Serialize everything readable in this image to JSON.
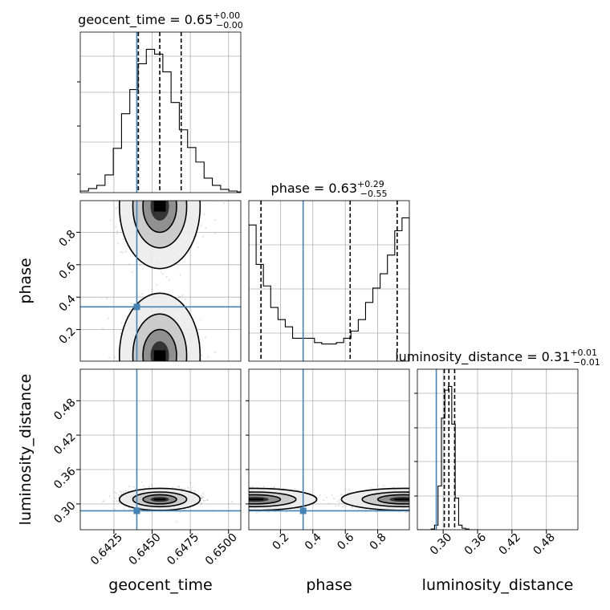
{
  "chart_data": {
    "type": "corner",
    "parameters": [
      "geocent_time",
      "phase",
      "luminosity_distance"
    ],
    "truths": [
      0.644,
      0.34,
      0.288
    ],
    "truth_color": "#4682b4",
    "axis_ranges": [
      [
        0.6403,
        0.6508
      ],
      [
        0.005,
        0.995
      ],
      [
        0.255,
        0.535
      ]
    ],
    "ticks": [
      {
        "values": [
          0.6425,
          0.645,
          0.6475,
          0.65
        ],
        "labels": [
          "0.6425",
          "0.6450",
          "0.6475",
          "0.6500"
        ]
      },
      {
        "values": [
          0.2,
          0.4,
          0.6,
          0.8
        ],
        "labels": [
          "0.2",
          "0.4",
          "0.6",
          "0.8"
        ]
      },
      {
        "values": [
          0.3,
          0.36,
          0.42,
          0.48
        ],
        "labels": [
          "0.30",
          "0.36",
          "0.42",
          "0.48"
        ]
      }
    ],
    "titles": [
      {
        "name": "geocent_time",
        "median": "0.65",
        "plus": "+0.00",
        "minus": "−0.00"
      },
      {
        "name": "phase",
        "median": "0.63",
        "plus": "+0.29",
        "minus": "−0.55"
      },
      {
        "name": "luminosity_distance",
        "median": "0.31",
        "plus": "+0.01",
        "minus": "−0.01"
      }
    ],
    "marginals": [
      {
        "quantiles": [
          0.6441,
          0.6455,
          0.6469
        ],
        "bin_edges": [
          0.6403,
          0.64084,
          0.64138,
          0.64192,
          0.64246,
          0.643,
          0.64354,
          0.64408,
          0.64462,
          0.64516,
          0.6457,
          0.64624,
          0.64678,
          0.64732,
          0.64786,
          0.6484,
          0.64894,
          0.64948,
          0.65002,
          0.65056,
          0.6511
        ],
        "counts": [
          2,
          5,
          9,
          22,
          55,
          98,
          128,
          160,
          178,
          172,
          150,
          112,
          78,
          56,
          38,
          18,
          9,
          4,
          2,
          1
        ]
      },
      {
        "quantiles": [
          0.08,
          0.63,
          0.92
        ],
        "bin_edges": [
          0.005,
          0.05,
          0.095,
          0.14,
          0.185,
          0.23,
          0.275,
          0.32,
          0.365,
          0.41,
          0.455,
          0.5,
          0.545,
          0.59,
          0.635,
          0.68,
          0.725,
          0.77,
          0.815,
          0.86,
          0.905,
          0.95,
          0.995
        ],
        "counts": [
          190,
          135,
          105,
          75,
          58,
          48,
          32,
          32,
          32,
          26,
          24,
          24,
          26,
          32,
          42,
          58,
          82,
          102,
          122,
          148,
          182,
          200
        ]
      },
      {
        "quantiles": [
          0.302,
          0.31,
          0.32
        ],
        "bin_edges": [
          0.255,
          0.261,
          0.267,
          0.273,
          0.279,
          0.285,
          0.291,
          0.297,
          0.303,
          0.309,
          0.315,
          0.321,
          0.327,
          0.333,
          0.339,
          0.345,
          0.351,
          0.357,
          0.363
        ],
        "counts": [
          0,
          0,
          0,
          0,
          1,
          6,
          58,
          148,
          185,
          190,
          140,
          42,
          6,
          2,
          1,
          0,
          0,
          0
        ]
      }
    ]
  }
}
